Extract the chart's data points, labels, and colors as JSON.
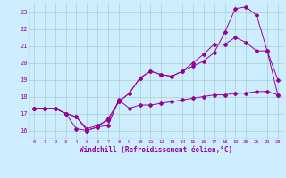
{
  "xlabel": "Windchill (Refroidissement éolien,°C)",
  "bg_color": "#cceeff",
  "line_color": "#990099",
  "grid_color": "#aacccc",
  "ylim": [
    15.5,
    23.5
  ],
  "xlim": [
    -0.5,
    23.5
  ],
  "yticks": [
    16,
    17,
    18,
    19,
    20,
    21,
    22,
    23
  ],
  "xticks": [
    0,
    1,
    2,
    3,
    4,
    5,
    6,
    7,
    8,
    9,
    10,
    11,
    12,
    13,
    14,
    15,
    16,
    17,
    18,
    19,
    20,
    21,
    22,
    23
  ],
  "line1_x": [
    0,
    1,
    2,
    3,
    4,
    5,
    6,
    7,
    8,
    9,
    10,
    11,
    12,
    13,
    14,
    15,
    16,
    17,
    18,
    19,
    20,
    21,
    22,
    23
  ],
  "line1_y": [
    17.3,
    17.3,
    17.3,
    17.0,
    16.1,
    16.0,
    16.2,
    16.3,
    17.8,
    17.3,
    17.5,
    17.5,
    17.6,
    17.7,
    17.8,
    17.9,
    18.0,
    18.1,
    18.1,
    18.2,
    18.2,
    18.3,
    18.3,
    18.1
  ],
  "line2_x": [
    0,
    1,
    2,
    3,
    4,
    5,
    6,
    7,
    8,
    9,
    10,
    11,
    12,
    13,
    14,
    15,
    16,
    17,
    18,
    19,
    20,
    21,
    22,
    23
  ],
  "line2_y": [
    17.3,
    17.3,
    17.3,
    17.0,
    16.8,
    16.0,
    16.2,
    16.7,
    17.7,
    18.2,
    19.1,
    19.5,
    19.3,
    19.2,
    19.5,
    19.8,
    20.1,
    20.6,
    21.8,
    23.2,
    23.3,
    22.8,
    20.7,
    18.1
  ],
  "line3_x": [
    0,
    1,
    2,
    3,
    4,
    5,
    6,
    7,
    8,
    9,
    10,
    11,
    12,
    13,
    14,
    15,
    16,
    17,
    18,
    19,
    20,
    21,
    22,
    23
  ],
  "line3_y": [
    17.3,
    17.3,
    17.3,
    17.0,
    16.8,
    16.1,
    16.3,
    16.6,
    17.7,
    18.2,
    19.1,
    19.5,
    19.3,
    19.2,
    19.5,
    20.0,
    20.5,
    21.1,
    21.1,
    21.5,
    21.2,
    20.7,
    20.7,
    19.0
  ]
}
